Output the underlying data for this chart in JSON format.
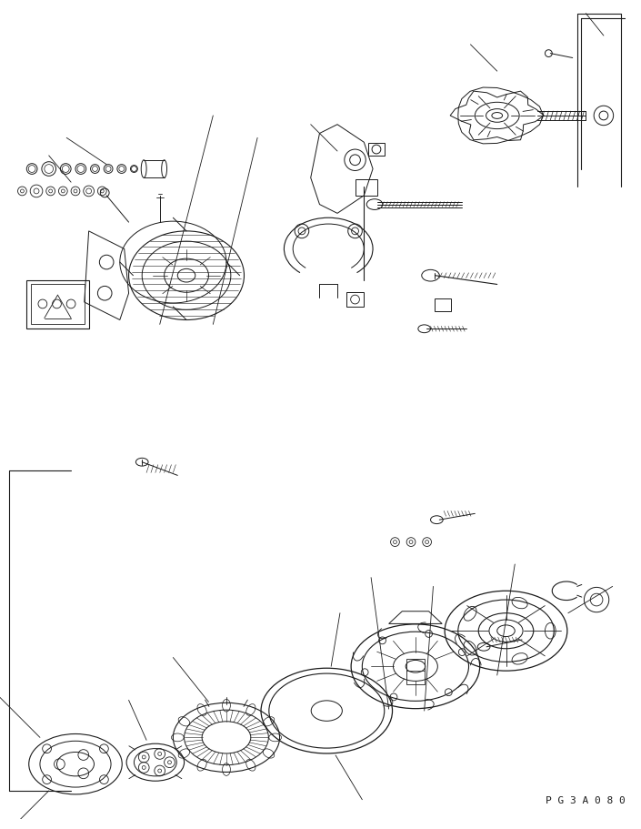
{
  "bg_color": "#ffffff",
  "line_color": "#1a1a1a",
  "page_id": "P G 3 A 0 8 0",
  "fig_width": 7.05,
  "fig_height": 9.12,
  "dpi": 100
}
